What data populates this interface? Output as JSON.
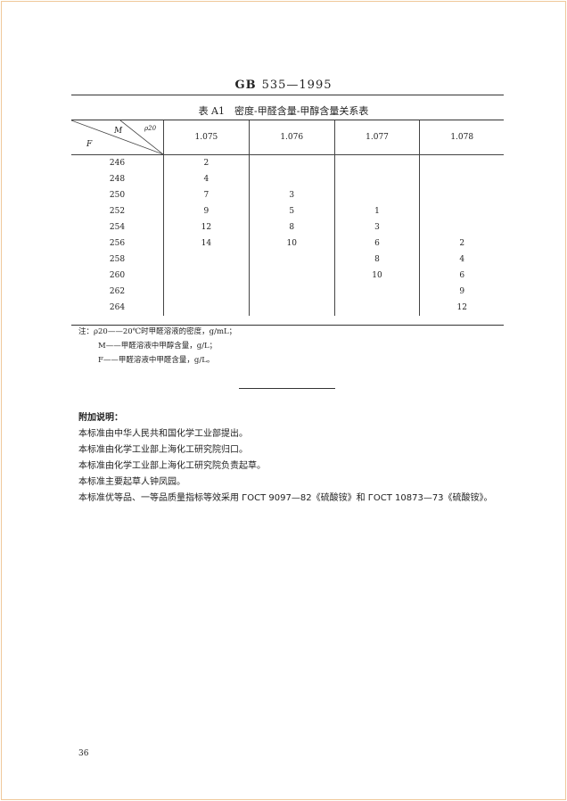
{
  "header": {
    "code": "GB",
    "number": "535—1995"
  },
  "table": {
    "caption": "表 A1　密度-甲醛含量-甲醇含量关系表",
    "corner": {
      "m": "M",
      "rho": "ρ20",
      "f": "F"
    },
    "columns": [
      "1.075",
      "1.076",
      "1.077",
      "1.078"
    ],
    "rows": [
      {
        "f": "246",
        "v": [
          "2",
          "",
          "",
          ""
        ]
      },
      {
        "f": "248",
        "v": [
          "4",
          "",
          "",
          ""
        ]
      },
      {
        "f": "250",
        "v": [
          "7",
          "3",
          "",
          ""
        ]
      },
      {
        "f": "252",
        "v": [
          "9",
          "5",
          "1",
          ""
        ]
      },
      {
        "f": "254",
        "v": [
          "12",
          "8",
          "3",
          ""
        ]
      },
      {
        "f": "256",
        "v": [
          "14",
          "10",
          "6",
          "2"
        ]
      },
      {
        "f": "258",
        "v": [
          "",
          "",
          "8",
          "4"
        ]
      },
      {
        "f": "260",
        "v": [
          "",
          "",
          "10",
          "6"
        ]
      },
      {
        "f": "262",
        "v": [
          "",
          "",
          "",
          "9"
        ]
      },
      {
        "f": "264",
        "v": [
          "",
          "",
          "",
          "12"
        ]
      }
    ]
  },
  "notes": [
    "注：ρ20——20℃时甲醛溶液的密度，g/mL；",
    "M——甲醛溶液中甲醇含量，g/L；",
    "F——甲醛溶液中甲醛含量，g/L。"
  ],
  "additional": {
    "title": "附加说明：",
    "lines": [
      "本标准由中华人民共和国化学工业部提出。",
      "本标准由化学工业部上海化工研究院归口。",
      "本标准由化学工业部上海化工研究院负责起草。",
      "本标准主要起草人钟凤园。",
      "本标准优等品、一等品质量指标等效采用 ГОСТ 9097—82《硫酸铵》和 ГОСТ 10873—73《硫酸铵》。"
    ]
  },
  "page_number": "36"
}
